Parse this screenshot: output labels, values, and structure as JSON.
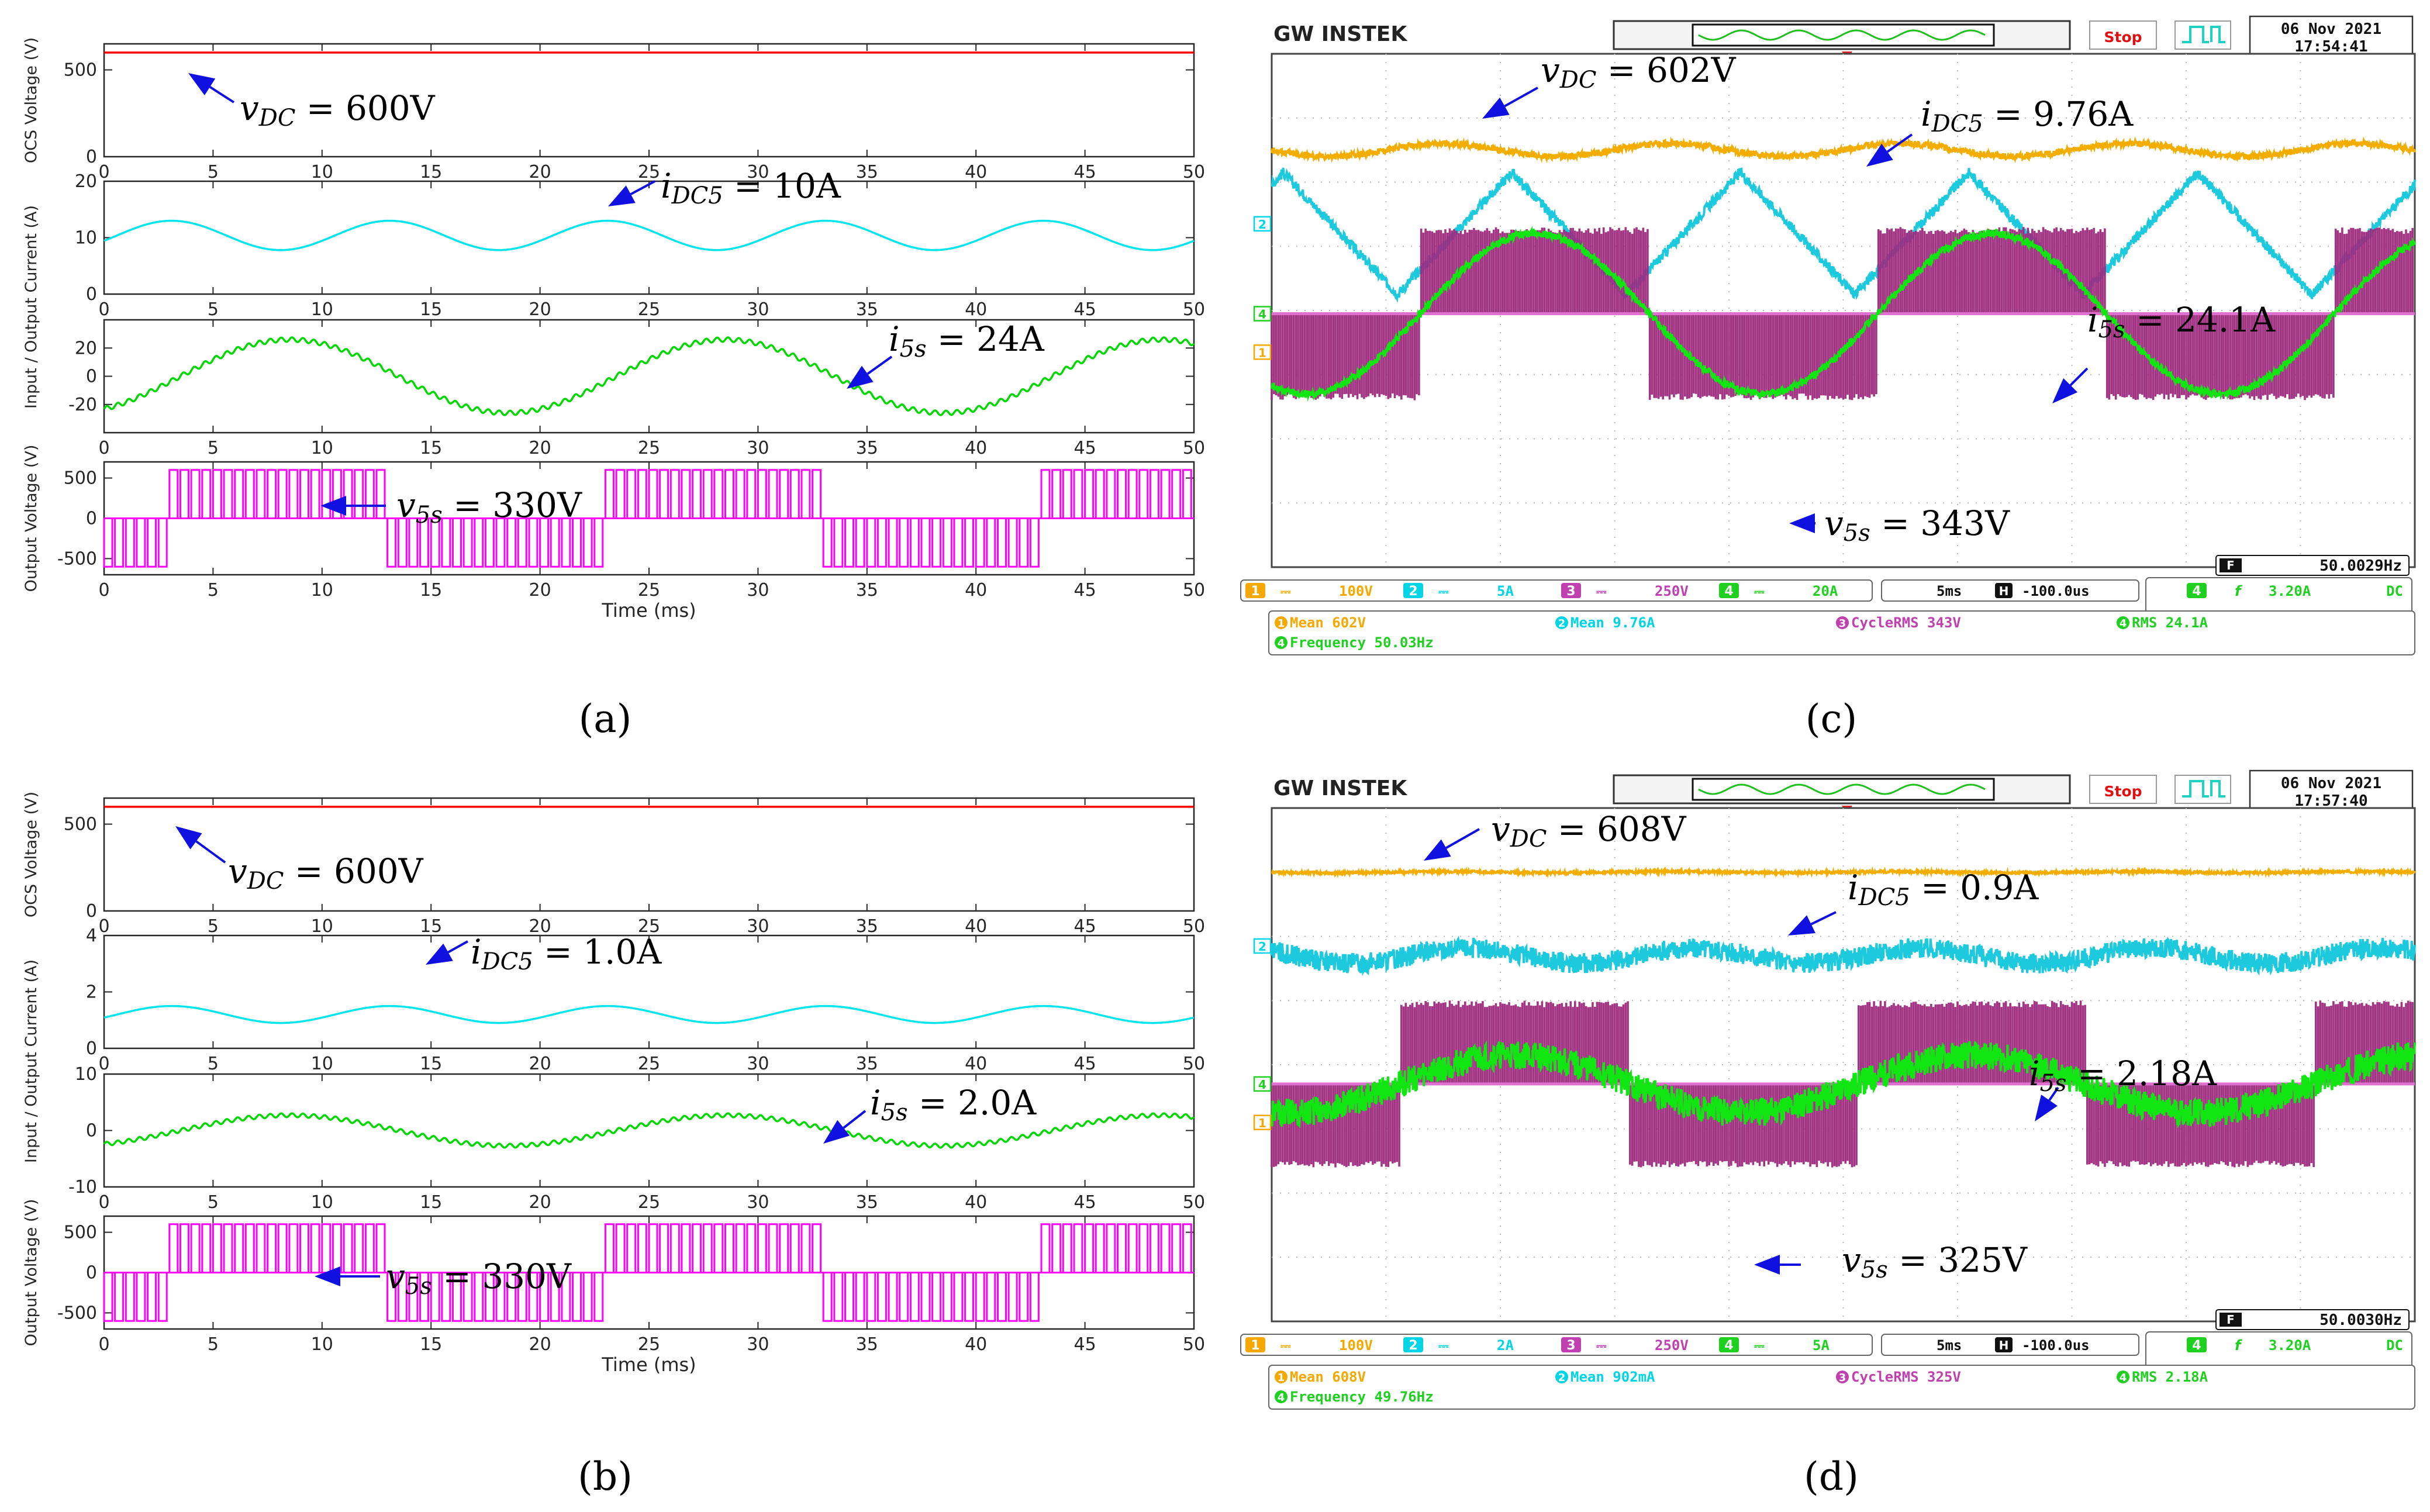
{
  "figure": {
    "captions": [
      "(a)",
      "(b)",
      "(c)",
      "(d)"
    ],
    "caption_letters": [
      "a",
      "b",
      "c",
      "d"
    ]
  },
  "chart_data": [
    {
      "id": "a",
      "type": "line",
      "title": "",
      "xlabel": "Time (ms)",
      "x_ticks": [
        "0",
        "5",
        "10",
        "15",
        "20",
        "25",
        "30",
        "35",
        "40",
        "45",
        "50"
      ],
      "xlim": [
        0,
        50
      ],
      "panels": [
        {
          "ylabel": "OCS Voltage (V)",
          "ylim": [
            0,
            650
          ],
          "y_ticks": [
            0,
            500
          ],
          "series": [
            {
              "name": "vDC",
              "color": "#ff0000",
              "kind": "dc",
              "dc": 600
            }
          ]
        },
        {
          "ylabel": "Input / Output Current (A)",
          "ylim": [
            0,
            20
          ],
          "y_ticks": [
            0,
            10,
            20
          ],
          "series": [
            {
              "name": "iDC5",
              "color": "#00e5ee",
              "kind": "sine",
              "offset": 10.4,
              "amp": 2.6,
              "freq_hz": 100,
              "phase_ms": 0.6
            }
          ]
        },
        {
          "ylabel": "",
          "ylim": [
            -40,
            40
          ],
          "y_ticks": [
            -20,
            0,
            20
          ],
          "series": [
            {
              "name": "i5s",
              "color": "#00d800",
              "kind": "sine_ripple",
              "offset": 0,
              "amp": 26,
              "freq_hz": 50,
              "phase_ms": 3.5,
              "ripple": 1.6
            }
          ]
        },
        {
          "ylabel": "Output Voltage (V)",
          "ylim": [
            -700,
            700
          ],
          "y_ticks": [
            -500,
            0,
            500
          ],
          "series": [
            {
              "name": "v5s",
              "color": "#ff00ff",
              "kind": "pwm",
              "level": 600,
              "freq_hz": 50,
              "phase_ms": 3.0
            }
          ]
        }
      ],
      "annotations": [
        {
          "var": "v",
          "sub": "DC",
          "rest": " = 600V",
          "panel": 0
        },
        {
          "var": "i",
          "sub": "DC5",
          "rest": " = 10A",
          "panel": 1
        },
        {
          "var": "i",
          "sub": "5s",
          "rest": " = 24A",
          "panel": 2
        },
        {
          "var": "v",
          "sub": "5s",
          "rest": " = 330V",
          "panel": 3
        }
      ]
    },
    {
      "id": "b",
      "type": "line",
      "title": "",
      "xlabel": "Time (ms)",
      "x_ticks": [
        "0",
        "5",
        "10",
        "15",
        "20",
        "25",
        "30",
        "35",
        "40",
        "45",
        "50"
      ],
      "xlim": [
        0,
        50
      ],
      "panels": [
        {
          "ylabel": "OCS Voltage (V)",
          "ylim": [
            0,
            650
          ],
          "y_ticks": [
            0,
            500
          ],
          "series": [
            {
              "name": "vDC",
              "color": "#ff0000",
              "kind": "dc",
              "dc": 600
            }
          ]
        },
        {
          "ylabel": "Input / Output Current (A)",
          "ylim": [
            0,
            4
          ],
          "y_ticks": [
            0,
            2,
            4
          ],
          "series": [
            {
              "name": "iDC5",
              "color": "#00e5ee",
              "kind": "sine",
              "offset": 1.2,
              "amp": 0.3,
              "freq_hz": 100,
              "phase_ms": 0.6
            }
          ]
        },
        {
          "ylabel": "",
          "ylim": [
            -10,
            10
          ],
          "y_ticks": [
            -10,
            0,
            10
          ],
          "series": [
            {
              "name": "i5s",
              "color": "#00d800",
              "kind": "sine_ripple",
              "offset": 0,
              "amp": 2.7,
              "freq_hz": 50,
              "phase_ms": 3.5,
              "ripple": 0.35
            }
          ]
        },
        {
          "ylabel": "Output Voltage (V)",
          "ylim": [
            -700,
            700
          ],
          "y_ticks": [
            -500,
            0,
            500
          ],
          "series": [
            {
              "name": "v5s",
              "color": "#ff00ff",
              "kind": "pwm",
              "level": 600,
              "freq_hz": 50,
              "phase_ms": 3.0
            }
          ]
        }
      ],
      "annotations": [
        {
          "var": "v",
          "sub": "DC",
          "rest": " = 600V",
          "panel": 0
        },
        {
          "var": "i",
          "sub": "DC5",
          "rest": " = 1.0A",
          "panel": 1
        },
        {
          "var": "i",
          "sub": "5s",
          "rest": " = 2.0A",
          "panel": 2
        },
        {
          "var": "v",
          "sub": "5s",
          "rest": " = 330V",
          "panel": 3
        }
      ]
    },
    {
      "id": "c",
      "type": "line",
      "title": "",
      "scope": {
        "brand": "GW INSTEK",
        "run_state": "Stop",
        "trigger_icon": "edge-trigger-icon",
        "date": "06 Nov 2021",
        "time": "17:54:41",
        "channel_markers": [
          "2",
          "4",
          "1"
        ],
        "freq_readout": "50.0029Hz",
        "freq_tag": "F",
        "settings": [
          {
            "ch": "1",
            "scale": "100V",
            "color": "#f5a800"
          },
          {
            "ch": "2",
            "scale": "5A",
            "color": "#00d5e6"
          },
          {
            "ch": "3",
            "scale": "250V",
            "color": "#c040b0"
          },
          {
            "ch": "4",
            "scale": "20A",
            "color": "#20d020"
          }
        ],
        "timebase": "5ms",
        "position_tag": "H",
        "position": "-100.0us",
        "trigger": {
          "ch": "4",
          "slope": "f",
          "level": "3.20A",
          "coupling": "DC"
        },
        "measurements": [
          {
            "ch": "1",
            "label": "Mean 602V",
            "color": "#f5a800"
          },
          {
            "ch": "2",
            "label": "Mean 9.76A",
            "color": "#00d5e6"
          },
          {
            "ch": "3",
            "label": "CycleRMS 343V",
            "color": "#c040b0"
          },
          {
            "ch": "4",
            "label": "RMS 24.1A",
            "color": "#20d020"
          },
          {
            "ch": "4",
            "label": "Frequency 50.03Hz",
            "color": "#20d020"
          }
        ]
      },
      "xlim": [
        -25,
        25
      ],
      "ylim": [
        -4,
        4
      ],
      "series": [
        {
          "name": "vDC",
          "channel": "1",
          "color": "#f2ad00",
          "kind": "dc_ripple",
          "offset": 2.5,
          "amp": 0.1,
          "noise": 0.05,
          "freq_hz": 100
        },
        {
          "name": "iDC5",
          "channel": "2",
          "color": "#1dc9dd",
          "kind": "tri",
          "offset": 1.2,
          "amp": 0.95,
          "noise": 0.08,
          "freq_hz": 100,
          "phase_ms": 0.5
        },
        {
          "name": "v5s",
          "channel": "3",
          "color": "#9e2a7e",
          "kind": "switch",
          "offset": -0.05,
          "level": 1.35,
          "freq_hz": 50,
          "phase_ms": 1.5
        },
        {
          "name": "i5s",
          "channel": "4",
          "color": "#12e612",
          "kind": "sine",
          "offset": -0.05,
          "amp": 1.25,
          "noise": 0.06,
          "freq_hz": 50,
          "phase_ms": 1.5
        }
      ],
      "annotations": [
        {
          "var": "v",
          "sub": "DC",
          "rest": " = 602V"
        },
        {
          "var": "i",
          "sub": "DC5",
          "rest": " = 9.76A"
        },
        {
          "var": "i",
          "sub": "5s",
          "rest": " = 24.1A"
        },
        {
          "var": "v",
          "sub": "5s",
          "rest": " = 343V"
        }
      ]
    },
    {
      "id": "d",
      "type": "line",
      "title": "",
      "scope": {
        "brand": "GW INSTEK",
        "run_state": "Stop",
        "trigger_icon": "edge-trigger-icon",
        "date": "06 Nov 2021",
        "time": "17:57:40",
        "channel_markers": [
          "2",
          "4",
          "1"
        ],
        "freq_readout": "50.0030Hz",
        "freq_tag": "F",
        "settings": [
          {
            "ch": "1",
            "scale": "100V",
            "color": "#f5a800"
          },
          {
            "ch": "2",
            "scale": "2A",
            "color": "#00d5e6"
          },
          {
            "ch": "3",
            "scale": "250V",
            "color": "#c040b0"
          },
          {
            "ch": "4",
            "scale": "5A",
            "color": "#20d020"
          }
        ],
        "timebase": "5ms",
        "position_tag": "H",
        "position": "-100.0us",
        "trigger": {
          "ch": "4",
          "slope": "f",
          "level": "3.20A",
          "coupling": "DC"
        },
        "measurements": [
          {
            "ch": "1",
            "label": "Mean 608V",
            "color": "#f5a800"
          },
          {
            "ch": "2",
            "label": "Mean 902mA",
            "color": "#00d5e6"
          },
          {
            "ch": "3",
            "label": "CycleRMS 325V",
            "color": "#c040b0"
          },
          {
            "ch": "4",
            "label": "RMS 2.18A",
            "color": "#20d020"
          },
          {
            "ch": "4",
            "label": "Frequency 49.76Hz",
            "color": "#20d020"
          }
        ]
      },
      "xlim": [
        -25,
        25
      ],
      "ylim": [
        -4,
        4
      ],
      "series": [
        {
          "name": "vDC",
          "channel": "1",
          "color": "#f2ad00",
          "kind": "dc_ripple",
          "offset": 3.0,
          "amp": 0.01,
          "noise": 0.02,
          "freq_hz": 100
        },
        {
          "name": "iDC5",
          "channel": "2",
          "color": "#1dc9dd",
          "kind": "sine",
          "offset": 1.7,
          "amp": 0.12,
          "noise": 0.16,
          "freq_hz": 100,
          "phase_ms": 1.0
        },
        {
          "name": "v5s",
          "channel": "3",
          "color": "#9e2a7e",
          "kind": "switch",
          "offset": -0.3,
          "level": 1.3,
          "freq_hz": 50,
          "phase_ms": 0.6
        },
        {
          "name": "i5s",
          "channel": "4",
          "color": "#12e612",
          "kind": "sine",
          "offset": -0.3,
          "amp": 0.45,
          "noise": 0.22,
          "freq_hz": 50,
          "phase_ms": 0.6
        }
      ],
      "annotations": [
        {
          "var": "v",
          "sub": "DC",
          "rest": " = 608V"
        },
        {
          "var": "i",
          "sub": "DC5",
          "rest": " = 0.9A"
        },
        {
          "var": "i",
          "sub": "5s",
          "rest": " = 2.18A"
        },
        {
          "var": "v",
          "sub": "5s",
          "rest": " = 325V"
        }
      ]
    }
  ]
}
